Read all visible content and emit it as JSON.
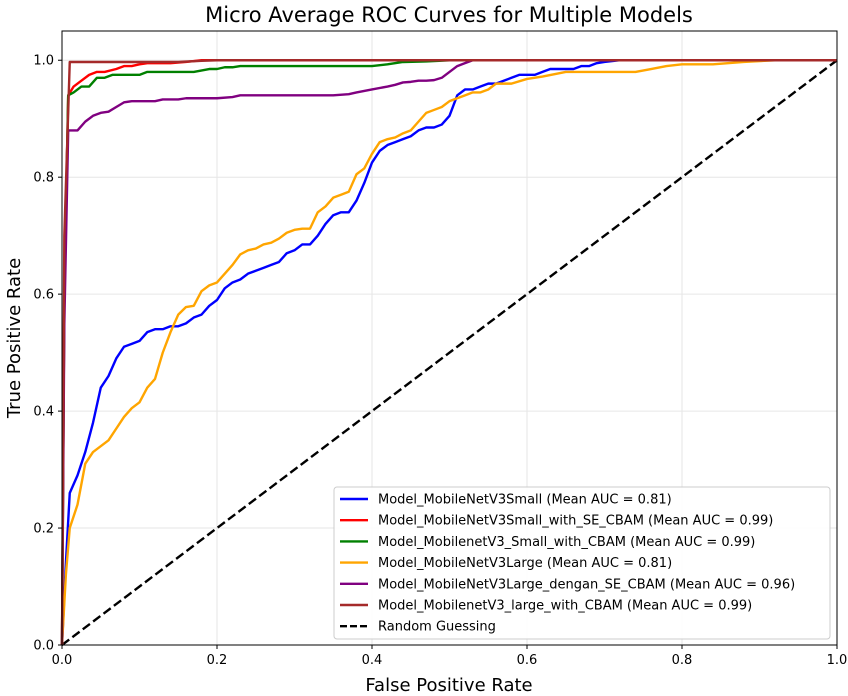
{
  "chart_data": {
    "type": "line",
    "title": "Micro Average ROC Curves for Multiple Models",
    "xlabel": "False Positive Rate",
    "ylabel": "True Positive Rate",
    "xlim": [
      0,
      1
    ],
    "ylim": [
      0,
      1.05
    ],
    "x_ticks": [
      "0.0",
      "0.2",
      "0.4",
      "0.6",
      "0.8",
      "1.0"
    ],
    "y_ticks": [
      "0.0",
      "0.2",
      "0.4",
      "0.6",
      "0.8",
      "1.0"
    ],
    "grid": true,
    "legend_position": "lower-right",
    "series": [
      {
        "name": "Model_MobileNetV3Small (Mean AUC = 0.81)",
        "color": "#0000ff",
        "style": "solid",
        "x": [
          0,
          0.005,
          0.01,
          0.02,
          0.03,
          0.04,
          0.05,
          0.06,
          0.07,
          0.08,
          0.09,
          0.1,
          0.11,
          0.12,
          0.13,
          0.14,
          0.15,
          0.16,
          0.17,
          0.18,
          0.19,
          0.2,
          0.21,
          0.22,
          0.23,
          0.24,
          0.25,
          0.26,
          0.27,
          0.28,
          0.29,
          0.3,
          0.31,
          0.32,
          0.33,
          0.34,
          0.35,
          0.36,
          0.37,
          0.38,
          0.39,
          0.4,
          0.41,
          0.42,
          0.43,
          0.44,
          0.45,
          0.46,
          0.47,
          0.48,
          0.49,
          0.5,
          0.51,
          0.52,
          0.53,
          0.54,
          0.55,
          0.56,
          0.57,
          0.58,
          0.59,
          0.6,
          0.61,
          0.62,
          0.63,
          0.64,
          0.65,
          0.66,
          0.67,
          0.68,
          0.69,
          0.7,
          0.72,
          0.75,
          0.8,
          0.9,
          1.0
        ],
        "y": [
          0,
          0.14,
          0.26,
          0.29,
          0.33,
          0.38,
          0.44,
          0.46,
          0.49,
          0.51,
          0.515,
          0.52,
          0.535,
          0.54,
          0.54,
          0.545,
          0.545,
          0.55,
          0.56,
          0.565,
          0.58,
          0.59,
          0.61,
          0.62,
          0.625,
          0.635,
          0.64,
          0.645,
          0.65,
          0.655,
          0.67,
          0.675,
          0.685,
          0.685,
          0.7,
          0.72,
          0.735,
          0.74,
          0.74,
          0.76,
          0.79,
          0.825,
          0.845,
          0.855,
          0.86,
          0.865,
          0.87,
          0.88,
          0.885,
          0.885,
          0.89,
          0.905,
          0.94,
          0.95,
          0.95,
          0.955,
          0.96,
          0.96,
          0.965,
          0.97,
          0.975,
          0.975,
          0.975,
          0.98,
          0.985,
          0.985,
          0.985,
          0.985,
          0.99,
          0.99,
          0.995,
          0.997,
          1.0,
          1.0,
          1.0,
          1.0,
          1.0
        ]
      },
      {
        "name": "Model_MobileNetV3Small_with_SE_CBAM (Mean AUC = 0.99)",
        "color": "#ff0000",
        "style": "solid",
        "x": [
          0,
          0.003,
          0.008,
          0.015,
          0.025,
          0.035,
          0.045,
          0.055,
          0.07,
          0.08,
          0.09,
          0.1,
          0.11,
          0.14,
          0.16,
          0.18,
          0.2,
          0.3,
          0.5,
          1.0
        ],
        "y": [
          0,
          0.6,
          0.94,
          0.955,
          0.965,
          0.975,
          0.98,
          0.98,
          0.985,
          0.99,
          0.99,
          0.993,
          0.995,
          0.995,
          0.997,
          1.0,
          1.0,
          1.0,
          1.0,
          1.0
        ]
      },
      {
        "name": "Model_MobilenetV3_Small_with_CBAM (Mean AUC = 0.99)",
        "color": "#008000",
        "style": "solid",
        "x": [
          0,
          0.003,
          0.008,
          0.015,
          0.025,
          0.035,
          0.045,
          0.055,
          0.065,
          0.075,
          0.1,
          0.11,
          0.15,
          0.17,
          0.19,
          0.2,
          0.21,
          0.22,
          0.23,
          0.3,
          0.35,
          0.4,
          0.42,
          0.44,
          0.47,
          0.5,
          0.6,
          1.0
        ],
        "y": [
          0,
          0.6,
          0.94,
          0.945,
          0.955,
          0.955,
          0.97,
          0.97,
          0.975,
          0.975,
          0.975,
          0.98,
          0.98,
          0.98,
          0.985,
          0.985,
          0.988,
          0.988,
          0.99,
          0.99,
          0.99,
          0.99,
          0.993,
          0.997,
          0.998,
          1.0,
          1.0,
          1.0
        ]
      },
      {
        "name": "Model_MobileNetV3Large (Mean AUC = 0.81)",
        "color": "#ffa500",
        "style": "solid",
        "x": [
          0,
          0.005,
          0.01,
          0.02,
          0.03,
          0.04,
          0.05,
          0.06,
          0.07,
          0.08,
          0.09,
          0.1,
          0.11,
          0.12,
          0.13,
          0.14,
          0.15,
          0.16,
          0.17,
          0.18,
          0.19,
          0.2,
          0.21,
          0.22,
          0.23,
          0.24,
          0.25,
          0.26,
          0.27,
          0.28,
          0.29,
          0.3,
          0.31,
          0.32,
          0.33,
          0.34,
          0.35,
          0.36,
          0.37,
          0.38,
          0.39,
          0.4,
          0.41,
          0.42,
          0.43,
          0.44,
          0.45,
          0.46,
          0.47,
          0.48,
          0.49,
          0.5,
          0.51,
          0.52,
          0.53,
          0.54,
          0.55,
          0.56,
          0.57,
          0.58,
          0.6,
          0.62,
          0.65,
          0.7,
          0.72,
          0.74,
          0.76,
          0.78,
          0.8,
          0.84,
          0.88,
          0.92,
          1.0
        ],
        "y": [
          0,
          0.12,
          0.2,
          0.24,
          0.31,
          0.33,
          0.34,
          0.35,
          0.37,
          0.39,
          0.405,
          0.415,
          0.44,
          0.455,
          0.5,
          0.535,
          0.565,
          0.578,
          0.58,
          0.605,
          0.615,
          0.62,
          0.635,
          0.65,
          0.668,
          0.675,
          0.678,
          0.685,
          0.688,
          0.695,
          0.705,
          0.71,
          0.712,
          0.712,
          0.74,
          0.75,
          0.765,
          0.77,
          0.775,
          0.805,
          0.815,
          0.84,
          0.86,
          0.865,
          0.868,
          0.875,
          0.88,
          0.895,
          0.91,
          0.915,
          0.92,
          0.93,
          0.935,
          0.94,
          0.945,
          0.945,
          0.95,
          0.96,
          0.96,
          0.96,
          0.968,
          0.972,
          0.98,
          0.98,
          0.98,
          0.98,
          0.985,
          0.99,
          0.993,
          0.993,
          0.997,
          1.0,
          1.0
        ]
      },
      {
        "name": "Model_MobileNetV3Large_dengan_SE_CBAM (Mean AUC = 0.96)",
        "color": "#800080",
        "style": "solid",
        "x": [
          0,
          0.003,
          0.008,
          0.02,
          0.03,
          0.04,
          0.05,
          0.06,
          0.07,
          0.08,
          0.09,
          0.1,
          0.12,
          0.13,
          0.15,
          0.16,
          0.18,
          0.2,
          0.22,
          0.23,
          0.25,
          0.3,
          0.35,
          0.37,
          0.38,
          0.4,
          0.42,
          0.43,
          0.44,
          0.45,
          0.46,
          0.47,
          0.48,
          0.49,
          0.5,
          0.51,
          0.52,
          0.53,
          0.55,
          0.6,
          0.7,
          1.0
        ],
        "y": [
          0,
          0.55,
          0.88,
          0.88,
          0.895,
          0.905,
          0.91,
          0.912,
          0.92,
          0.928,
          0.93,
          0.93,
          0.93,
          0.933,
          0.933,
          0.935,
          0.935,
          0.935,
          0.937,
          0.94,
          0.94,
          0.94,
          0.94,
          0.942,
          0.945,
          0.95,
          0.955,
          0.958,
          0.962,
          0.963,
          0.965,
          0.965,
          0.966,
          0.97,
          0.98,
          0.99,
          0.995,
          1.0,
          1.0,
          1.0,
          1.0,
          1.0
        ]
      },
      {
        "name": "Model_MobilenetV3_large_with_CBAM (Mean AUC = 0.99)",
        "color": "#a52a2a",
        "style": "solid",
        "x": [
          0,
          0.003,
          0.01,
          0.05,
          0.1,
          0.15,
          0.18,
          0.2,
          0.3,
          0.5,
          0.7,
          1.0
        ],
        "y": [
          0,
          0.7,
          0.997,
          0.997,
          0.997,
          0.997,
          0.999,
          1.0,
          1.0,
          1.0,
          1.0,
          1.0
        ]
      },
      {
        "name": "Random Guessing",
        "color": "#000000",
        "style": "dashed",
        "x": [
          0,
          1
        ],
        "y": [
          0,
          1
        ]
      }
    ]
  }
}
